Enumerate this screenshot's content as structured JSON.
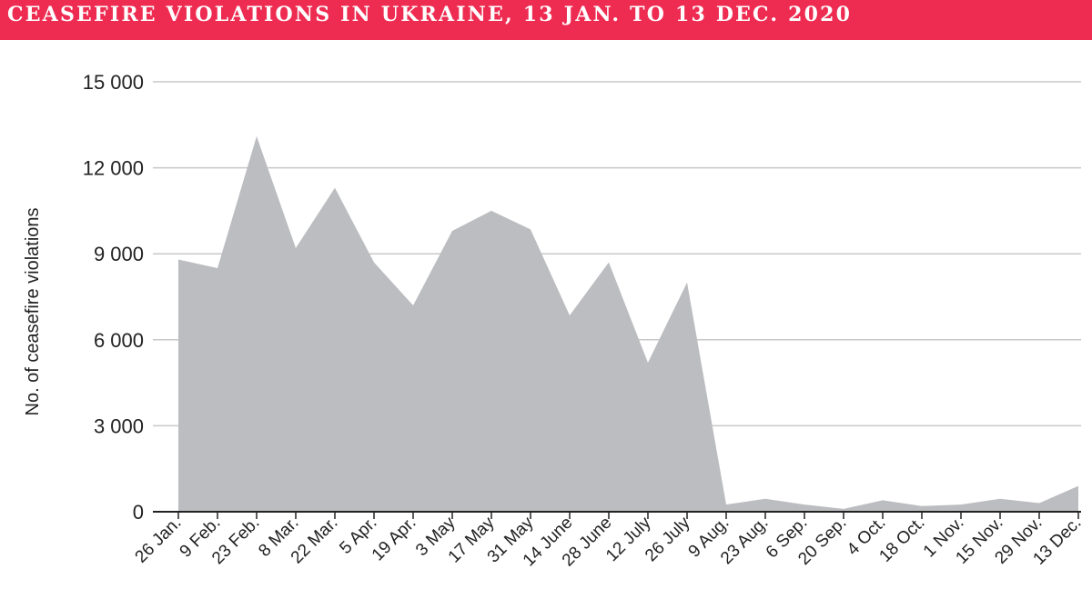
{
  "header": {
    "title": "CEASEFIRE VIOLATIONS IN UKRAINE, 13 JAN. TO 13 DEC. 2020"
  },
  "colors": {
    "header_bg": "#ee2c52",
    "area_fill": "#bcbdc0",
    "grid": "#c8c8c8",
    "text": "#222222"
  },
  "chart_data": {
    "type": "area",
    "title": "CEASEFIRE VIOLATIONS IN UKRAINE, 13 JAN. TO 13 DEC. 2020",
    "xlabel": "",
    "ylabel": "No. of ceasefire violations",
    "ylim": [
      0,
      15000
    ],
    "yticks": [
      0,
      3000,
      6000,
      9000,
      12000,
      15000
    ],
    "ytick_labels": [
      "0",
      "3 000",
      "6 000",
      "9 000",
      "12 000",
      "15 000"
    ],
    "grid": true,
    "categories": [
      "26 Jan.",
      "9 Feb.",
      "23 Feb.",
      "8 Mar.",
      "22 Mar.",
      "5 Apr.",
      "19 Apr.",
      "3 May",
      "17 May",
      "31 May",
      "14 June",
      "28 June",
      "12 July",
      "26 July",
      "9 Aug.",
      "23 Aug.",
      "6 Sep.",
      "20 Sep.",
      "4 Oct.",
      "18 Oct.",
      "1 Nov.",
      "15 Nov.",
      "29 Nov.",
      "13 Dec."
    ],
    "series": [
      {
        "values": [
          8800,
          8500,
          13100,
          9200,
          11300,
          8700,
          7200,
          9800,
          10500,
          9850,
          6850,
          8700,
          5200,
          8000,
          250,
          450,
          250,
          100,
          400,
          200,
          250,
          450,
          300,
          900
        ]
      }
    ]
  }
}
